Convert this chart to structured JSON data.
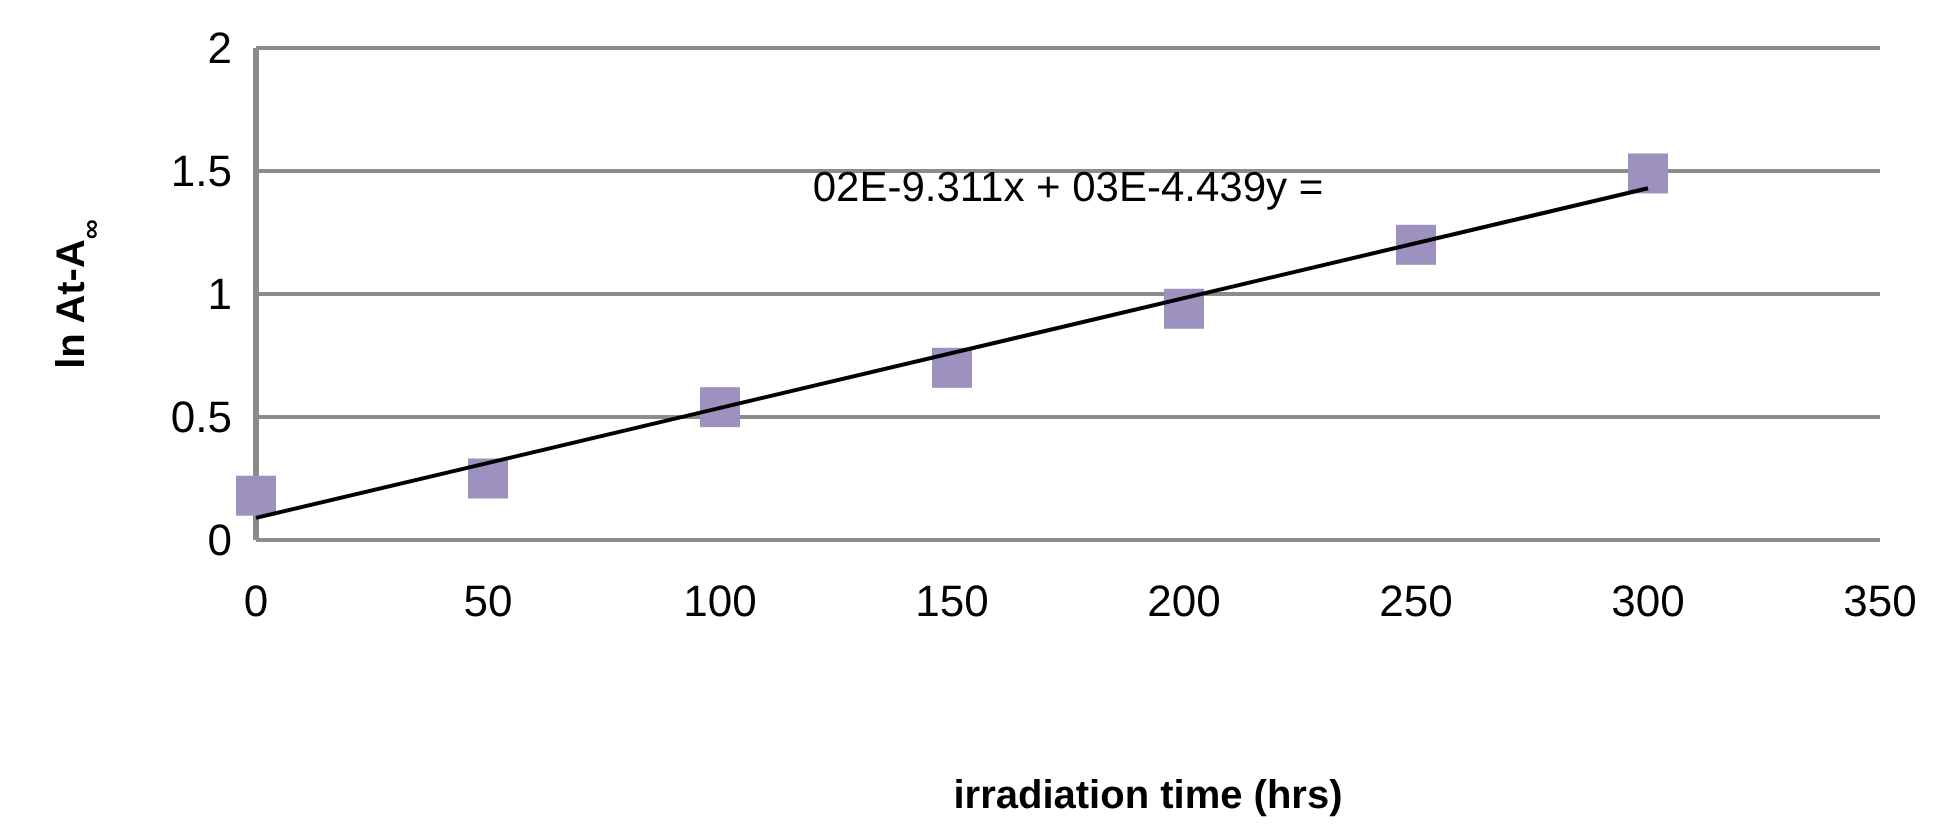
{
  "chart_data": {
    "type": "scatter",
    "xlabel": "irradiation time (hrs)",
    "ylabel": "ln At-A$_{∞}$",
    "x": [
      0,
      50,
      100,
      150,
      200,
      250,
      300
    ],
    "series": [
      {
        "color": "#9d91c0",
        "marker": "square",
        "values": [
          0.18,
          0.25,
          0.54,
          0.7,
          0.94,
          1.2,
          1.49
        ]
      },
      {
        "type": "line",
        "color": "#000000",
        "marker": "none",
        "x": [
          0,
          300
        ],
        "values": [
          0.09,
          1.43
        ]
      }
    ],
    "xlim": [
      0,
      350
    ],
    "xticks": [
      0,
      50,
      100,
      150,
      200,
      250,
      300,
      350
    ],
    "ylim": [
      0,
      2
    ],
    "yticks": [
      0,
      0.5,
      1,
      1.5,
      2
    ],
    "grid": "y",
    "annotations": [
      "02E-9.311x + 03E-4.439y ="
    ]
  }
}
